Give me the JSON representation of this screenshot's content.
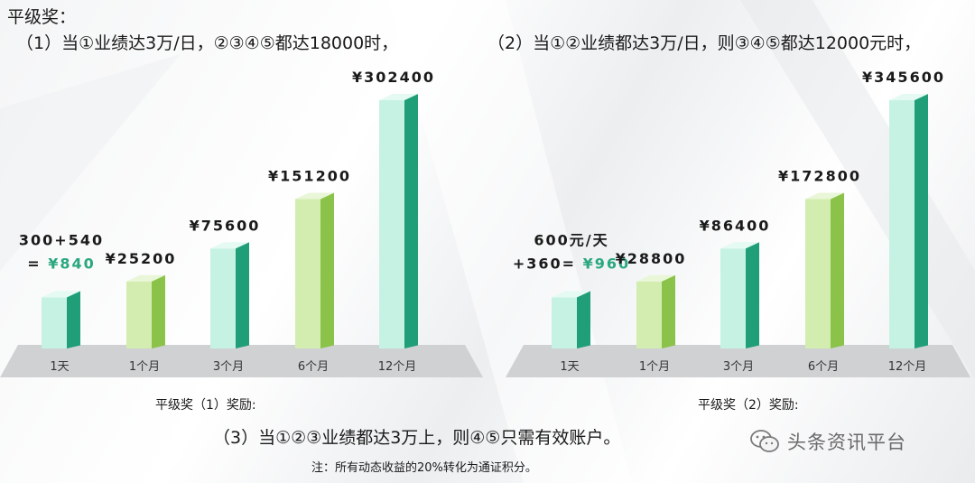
{
  "heading": "平级奖：",
  "cond1": "（1）当①业绩达3万/日，②③④⑤都达18000时，",
  "cond2": "（2）当①②业绩都达3万/日，则③④⑤都达12000元时，",
  "caption1": "平级奖（1）奖励:",
  "caption2": "平级奖（2）奖励:",
  "cond3": "（3）当①②③业绩都达3万上，则④⑤只需有效账户。",
  "note": "注：所有动态收益的20%转化为通证积分。",
  "watermark": "头条资讯平台",
  "watermark_icon": "wechat-icon",
  "colors": {
    "mint": "#c6f2e4",
    "teal": "#1f9e78",
    "lightgreen": "#d3edb0",
    "green": "#8bc34a",
    "accent_text": "#2aa77e",
    "platform": "#cfd1d3"
  },
  "chart_data": [
    {
      "type": "bar",
      "categories": [
        "1天",
        "1个月",
        "3个月",
        "6个月",
        "12个月"
      ],
      "values": [
        840,
        25200,
        75600,
        151200,
        302400
      ],
      "labels": [
        "",
        "¥25200",
        "¥75600",
        "¥151200",
        "¥302400"
      ],
      "first_label_lines": [
        "300+540",
        "= ",
        "¥840"
      ],
      "bar_styles": [
        "mint",
        "lightgreen",
        "mint",
        "lightgreen",
        "mint"
      ]
    },
    {
      "type": "bar",
      "categories": [
        "1天",
        "1个月",
        "3个月",
        "6个月",
        "12个月"
      ],
      "values": [
        960,
        28800,
        86400,
        172800,
        345600
      ],
      "labels": [
        "",
        "¥28800",
        "¥86400",
        "¥172800",
        "¥345600"
      ],
      "first_label_lines": [
        "600元/天",
        "+360= ",
        "¥960"
      ],
      "bar_styles": [
        "mint",
        "lightgreen",
        "mint",
        "lightgreen",
        "mint"
      ]
    }
  ]
}
